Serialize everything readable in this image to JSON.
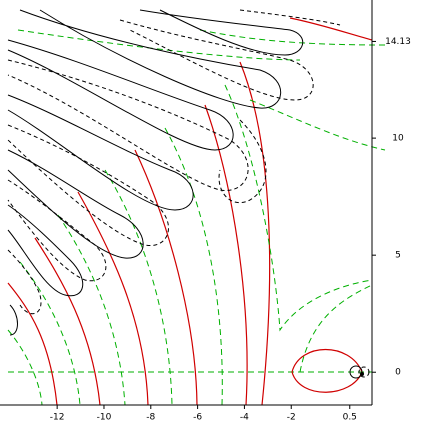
{
  "chart_data": {
    "type": "contour",
    "xlim": [
      -14.1,
      1.45
    ],
    "ylim": [
      -1.4,
      15.9
    ],
    "xticks": [
      -12,
      -10,
      -8,
      -6,
      -4,
      -2,
      0.5
    ],
    "yticks": [
      0,
      5,
      10,
      14.13
    ]
  }
}
